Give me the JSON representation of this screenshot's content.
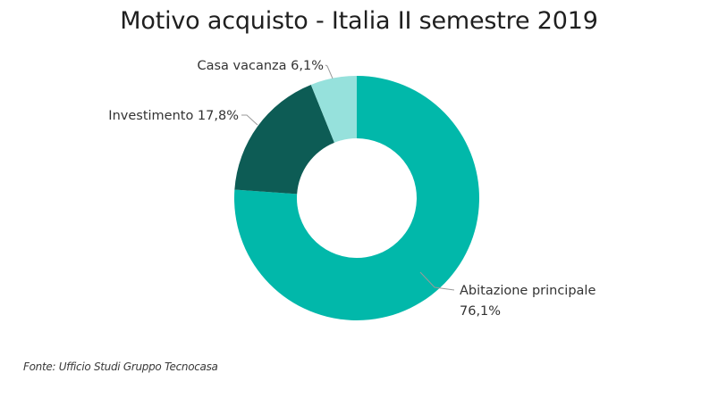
{
  "chart_data": {
    "type": "pie",
    "title": "Motivo acquisto - Italia II semestre 2019",
    "donut": true,
    "categories": [
      "Abitazione principale",
      "Investimento",
      "Casa vacanza"
    ],
    "values": [
      76.1,
      17.8,
      6.1
    ],
    "labels": [
      {
        "name": "Abitazione principale",
        "value_text": "76,1%"
      },
      {
        "name": "Investimento",
        "value_text": "17,8%"
      },
      {
        "name": "Casa vacanza",
        "value_text": "6,1%"
      }
    ],
    "colors": [
      "#01B8AA",
      "#0D5C55",
      "#96E1DC"
    ],
    "legend": "none"
  },
  "source": "Fonte: Ufficio Studi Gruppo Tecnocasa"
}
